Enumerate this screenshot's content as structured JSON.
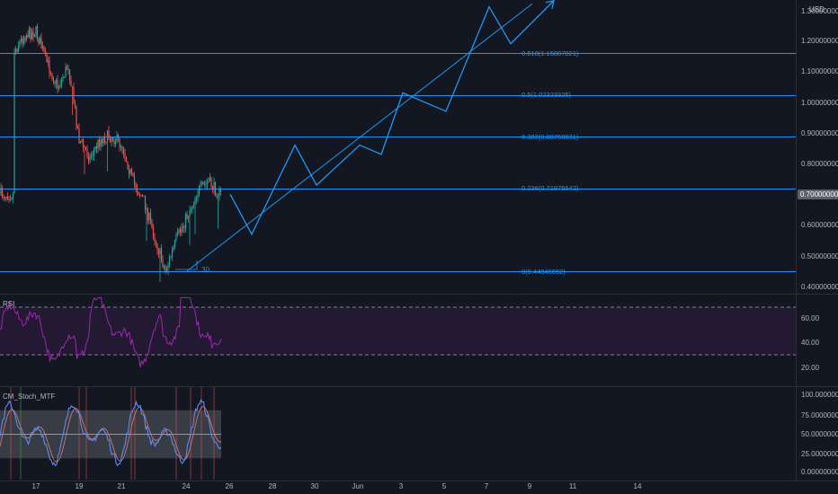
{
  "currency": "USD",
  "current_price": "0.70000000",
  "price_axis": [
    "1.30000000",
    "1.20000000",
    "1.10000000",
    "1.00000000",
    "0.90000000",
    "0.80000000",
    "0.60000000",
    "0.50000000",
    "0.40000000"
  ],
  "fib_levels": [
    {
      "label": "0.618(1.15887821)",
      "price": 1.15887821
    },
    {
      "label": "0.5(1.02323326)",
      "price": 1.02323326
    },
    {
      "label": "0.382(0.88758831)",
      "price": 0.88758831
    },
    {
      "label": "0.236(0.71975642)",
      "price": 0.71975642
    },
    {
      "label": "0(0.44846652)",
      "price": 0.44846652
    }
  ],
  "count_label": "30",
  "x_axis": [
    "17",
    "19",
    "21",
    "24",
    "26",
    "28",
    "30",
    "Jun",
    "3",
    "5",
    "7",
    "9",
    "11",
    "14"
  ],
  "rsi": {
    "title": "RSI",
    "axis": [
      "60.00",
      "40.00",
      "20.00"
    ],
    "upper": 70,
    "lower": 30
  },
  "stoch": {
    "title": "CM_Stoch_MTF",
    "axis": [
      "100.00000000",
      "75.00000000",
      "50.00000000",
      "25.00000000",
      "0.00000000"
    ],
    "upper": 80,
    "lower": 20
  },
  "colors": {
    "background": "#131722",
    "up": "#26a69a",
    "down": "#ef5350",
    "fib": "#2196f3",
    "rsi": "#9c27b0",
    "stoch_k": "#5b8def",
    "stoch_d": "#e07c7c"
  },
  "chart_data": [
    {
      "type": "candlestick",
      "pane": "price",
      "currency": "USD",
      "y_ticks": [
        0.4,
        0.5,
        0.6,
        0.7,
        0.8,
        0.9,
        1.0,
        1.1,
        1.2,
        1.3
      ],
      "x_ticks": [
        "17",
        "19",
        "21",
        "24",
        "26",
        "28",
        "30",
        "Jun",
        "3",
        "5",
        "7",
        "9",
        "11",
        "14"
      ],
      "close_series": [
        {
          "x": "16",
          "y": 1.17
        },
        {
          "x": "16.5",
          "y": 1.22
        },
        {
          "x": "17",
          "y": 1.23
        },
        {
          "x": "17.5",
          "y": 1.13
        },
        {
          "x": "18",
          "y": 1.05
        },
        {
          "x": "18.5",
          "y": 1.12
        },
        {
          "x": "19",
          "y": 0.88
        },
        {
          "x": "19.5",
          "y": 0.82
        },
        {
          "x": "20",
          "y": 0.88
        },
        {
          "x": "20.5",
          "y": 0.89
        },
        {
          "x": "21",
          "y": 0.86
        },
        {
          "x": "21.5",
          "y": 0.74
        },
        {
          "x": "22",
          "y": 0.68
        },
        {
          "x": "22.5",
          "y": 0.56
        },
        {
          "x": "23",
          "y": 0.45
        },
        {
          "x": "23.5",
          "y": 0.55
        },
        {
          "x": "24",
          "y": 0.63
        },
        {
          "x": "24.5",
          "y": 0.71
        },
        {
          "x": "25",
          "y": 0.74
        },
        {
          "x": "25.5",
          "y": 0.7
        }
      ],
      "projection": [
        {
          "x": "26",
          "y": 0.7
        },
        {
          "x": "27",
          "y": 0.57
        },
        {
          "x": "29",
          "y": 0.86
        },
        {
          "x": "30",
          "y": 0.73
        },
        {
          "x": "Jun 1",
          "y": 0.86
        },
        {
          "x": "Jun 2",
          "y": 0.83
        },
        {
          "x": "Jun 3",
          "y": 1.03
        },
        {
          "x": "Jun 5",
          "y": 0.97
        },
        {
          "x": "Jun 7",
          "y": 1.31
        },
        {
          "x": "Jun 8",
          "y": 1.19
        },
        {
          "x": "Jun 10",
          "y": 1.33
        }
      ],
      "trendline": [
        {
          "x": "24",
          "y": 0.45
        },
        {
          "x": "Jun 9",
          "y": 1.32
        }
      ]
    },
    {
      "type": "line",
      "pane": "rsi",
      "title": "RSI",
      "y_ticks": [
        20,
        40,
        60
      ],
      "bands": [
        30,
        70
      ]
    },
    {
      "type": "line",
      "pane": "stochastic",
      "title": "CM_Stoch_MTF",
      "y_ticks": [
        0,
        25,
        50,
        75,
        100
      ],
      "bands": [
        20,
        80
      ]
    }
  ]
}
